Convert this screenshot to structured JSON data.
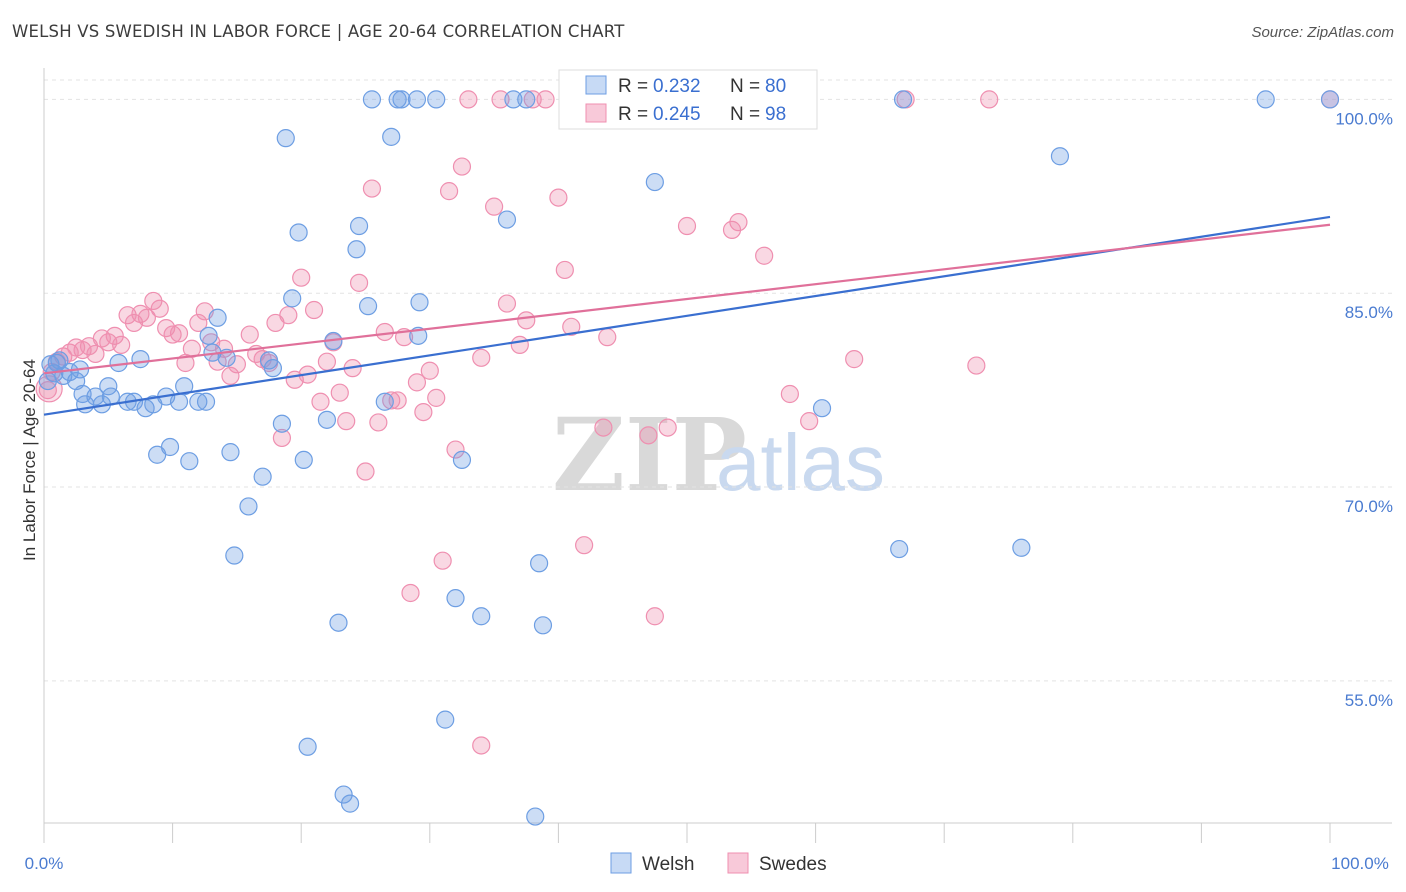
{
  "title": "WELSH VS SWEDISH IN LABOR FORCE | AGE 20-64 CORRELATION CHART",
  "source": "Source: ZipAtlas.com",
  "watermark": {
    "zip": "ZIP",
    "atlas": "atlas"
  },
  "legend": {
    "r_label": "R =",
    "n_label": "N =",
    "welsh": {
      "r": "0.232",
      "n": "80"
    },
    "swedes": {
      "r": "0.245",
      "n": "98"
    }
  },
  "chart_data": {
    "type": "scatter",
    "title": "WELSH VS SWEDISH IN LABOR FORCE | AGE 20-64 CORRELATION CHART",
    "xlabel": "",
    "ylabel": "In Labor Force | Age 20-64",
    "xlim": [
      0,
      100
    ],
    "ylim": [
      44,
      101.5
    ],
    "x_tick_labels": [
      "0.0%",
      "100.0%"
    ],
    "y_ticks": [
      55,
      70,
      85,
      100
    ],
    "y_tick_labels": [
      "55.0%",
      "70.0%",
      "85.0%",
      "100.0%"
    ],
    "colors": {
      "welsh": "#6d9ee3",
      "swedes": "#ef8fb0",
      "welsh_line": "#3a6fd0",
      "swedes_line": "#e0709a"
    },
    "series": [
      {
        "name": "Welsh",
        "trendline": {
          "x": [
            0,
            100
          ],
          "y": [
            75.6,
            90.9
          ]
        },
        "points": [
          [
            0.5,
            79.5
          ],
          [
            0.8,
            78.8
          ],
          [
            1.2,
            79.8
          ],
          [
            1.5,
            78.6
          ],
          [
            2.0,
            78.9
          ],
          [
            2.5,
            78.2
          ],
          [
            3.0,
            77.2
          ],
          [
            3.2,
            76.4
          ],
          [
            4.0,
            77.0
          ],
          [
            4.5,
            76.4
          ],
          [
            5.0,
            77.8
          ],
          [
            5.8,
            79.6
          ],
          [
            6.5,
            76.6
          ],
          [
            7.0,
            76.6
          ],
          [
            7.5,
            79.9
          ],
          [
            7.9,
            76.1
          ],
          [
            8.5,
            76.4
          ],
          [
            8.8,
            72.5
          ],
          [
            9.5,
            77.0
          ],
          [
            9.8,
            73.1
          ],
          [
            10.5,
            76.6
          ],
          [
            10.9,
            77.8
          ],
          [
            11.3,
            72.0
          ],
          [
            12.0,
            76.6
          ],
          [
            12.6,
            76.6
          ],
          [
            12.8,
            81.7
          ],
          [
            13.1,
            80.4
          ],
          [
            13.5,
            83.1
          ],
          [
            14.2,
            80.0
          ],
          [
            14.5,
            72.7
          ],
          [
            14.8,
            64.7
          ],
          [
            15.9,
            68.5
          ],
          [
            17.0,
            70.8
          ],
          [
            17.5,
            79.8
          ],
          [
            17.8,
            79.2
          ],
          [
            18.5,
            74.9
          ],
          [
            18.8,
            97.0
          ],
          [
            19.3,
            84.6
          ],
          [
            19.8,
            89.7
          ],
          [
            20.2,
            72.1
          ],
          [
            20.5,
            49.9
          ],
          [
            22.0,
            75.2
          ],
          [
            22.5,
            81.3
          ],
          [
            22.9,
            59.5
          ],
          [
            23.3,
            46.2
          ],
          [
            23.8,
            45.5
          ],
          [
            24.3,
            88.4
          ],
          [
            24.5,
            90.2
          ],
          [
            25.2,
            84.0
          ],
          [
            25.5,
            100
          ],
          [
            26.5,
            76.6
          ],
          [
            27.0,
            97.1
          ],
          [
            27.5,
            100
          ],
          [
            27.8,
            100
          ],
          [
            29.0,
            100
          ],
          [
            29.1,
            81.7
          ],
          [
            29.2,
            84.3
          ],
          [
            30.5,
            100
          ],
          [
            31.2,
            52.0
          ],
          [
            32.0,
            61.4
          ],
          [
            32.5,
            72.1
          ],
          [
            34.0,
            60.0
          ],
          [
            36.0,
            90.7
          ],
          [
            36.5,
            100
          ],
          [
            37.5,
            100
          ],
          [
            38.2,
            44.5
          ],
          [
            38.5,
            64.1
          ],
          [
            38.8,
            59.3
          ],
          [
            47.5,
            93.6
          ],
          [
            60.5,
            76.1
          ],
          [
            66.5,
            65.2
          ],
          [
            66.8,
            100
          ],
          [
            76.0,
            65.3
          ],
          [
            79.0,
            95.6
          ],
          [
            95.0,
            100
          ],
          [
            100,
            100
          ],
          [
            0.3,
            78.2
          ],
          [
            1.0,
            79.6
          ],
          [
            2.8,
            79.1
          ],
          [
            5.2,
            77.0
          ]
        ]
      },
      {
        "name": "Swedes",
        "trendline": {
          "x": [
            0,
            100
          ],
          "y": [
            78.8,
            90.3
          ]
        },
        "points": [
          [
            0.3,
            77.5
          ],
          [
            0.6,
            78.9
          ],
          [
            1.0,
            79.7
          ],
          [
            1.5,
            80.1
          ],
          [
            2.0,
            80.4
          ],
          [
            2.5,
            80.8
          ],
          [
            3.0,
            80.6
          ],
          [
            3.5,
            80.9
          ],
          [
            4.0,
            80.3
          ],
          [
            4.5,
            81.5
          ],
          [
            5.0,
            81.2
          ],
          [
            5.5,
            81.7
          ],
          [
            6.0,
            81.0
          ],
          [
            6.5,
            83.3
          ],
          [
            7.0,
            82.7
          ],
          [
            7.5,
            83.4
          ],
          [
            8.0,
            83.1
          ],
          [
            8.5,
            84.4
          ],
          [
            9.0,
            83.8
          ],
          [
            9.5,
            82.3
          ],
          [
            10.0,
            81.8
          ],
          [
            10.5,
            81.9
          ],
          [
            11.0,
            79.6
          ],
          [
            11.5,
            80.7
          ],
          [
            12.0,
            82.7
          ],
          [
            12.5,
            83.6
          ],
          [
            13.0,
            81.2
          ],
          [
            13.5,
            79.7
          ],
          [
            14.0,
            80.7
          ],
          [
            14.5,
            78.6
          ],
          [
            15.0,
            79.5
          ],
          [
            16.0,
            81.8
          ],
          [
            16.5,
            80.3
          ],
          [
            17.0,
            79.9
          ],
          [
            17.5,
            79.6
          ],
          [
            18.0,
            82.7
          ],
          [
            18.5,
            73.8
          ],
          [
            19.0,
            83.3
          ],
          [
            19.5,
            78.3
          ],
          [
            20.0,
            86.2
          ],
          [
            20.5,
            78.7
          ],
          [
            21.0,
            83.7
          ],
          [
            21.5,
            76.6
          ],
          [
            22.0,
            79.7
          ],
          [
            22.5,
            81.2
          ],
          [
            23.0,
            77.3
          ],
          [
            23.5,
            75.1
          ],
          [
            24.0,
            79.2
          ],
          [
            24.5,
            85.8
          ],
          [
            25.0,
            71.2
          ],
          [
            25.5,
            93.1
          ],
          [
            26.0,
            75.0
          ],
          [
            26.5,
            82.0
          ],
          [
            27.0,
            76.7
          ],
          [
            27.5,
            76.7
          ],
          [
            28.0,
            81.6
          ],
          [
            28.5,
            61.8
          ],
          [
            29.0,
            78.1
          ],
          [
            29.5,
            75.8
          ],
          [
            30.0,
            79.0
          ],
          [
            30.5,
            76.9
          ],
          [
            31.0,
            64.3
          ],
          [
            31.5,
            92.9
          ],
          [
            32.0,
            72.9
          ],
          [
            32.5,
            94.8
          ],
          [
            33.0,
            100
          ],
          [
            34.0,
            80.0
          ],
          [
            35.0,
            91.7
          ],
          [
            35.5,
            100
          ],
          [
            36.0,
            84.2
          ],
          [
            37.0,
            81.0
          ],
          [
            37.5,
            82.9
          ],
          [
            38.0,
            100
          ],
          [
            39.0,
            100
          ],
          [
            40.0,
            92.4
          ],
          [
            40.5,
            86.8
          ],
          [
            41.0,
            82.4
          ],
          [
            42.0,
            65.5
          ],
          [
            42.5,
            100
          ],
          [
            43.5,
            74.6
          ],
          [
            43.8,
            81.6
          ],
          [
            45.0,
            100
          ],
          [
            47.0,
            74.0
          ],
          [
            47.5,
            60.0
          ],
          [
            48.5,
            74.6
          ],
          [
            50.0,
            90.2
          ],
          [
            52.0,
            100
          ],
          [
            53.5,
            89.9
          ],
          [
            54.0,
            90.5
          ],
          [
            56.0,
            87.9
          ],
          [
            58.0,
            77.2
          ],
          [
            59.5,
            75.1
          ],
          [
            63.0,
            79.9
          ],
          [
            67.0,
            100
          ],
          [
            72.5,
            79.4
          ],
          [
            73.5,
            100
          ],
          [
            34.0,
            50.0
          ],
          [
            100,
            100
          ]
        ]
      }
    ]
  },
  "bottom_legend": [
    "Welsh",
    "Swedes"
  ]
}
